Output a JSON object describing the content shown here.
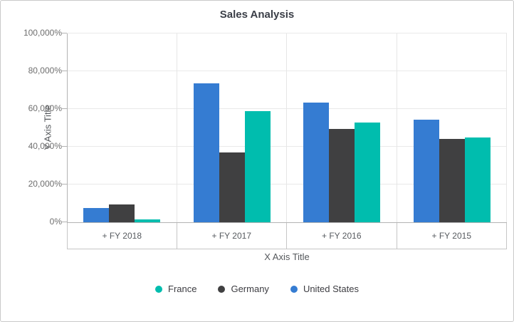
{
  "chart_data": {
    "type": "bar",
    "title": "Sales Analysis",
    "xlabel": "X Axis Title",
    "ylabel": "Y Axis Title",
    "categories": [
      "+ FY 2018",
      "+ FY 2017",
      "+ FY 2016",
      "+ FY 2015"
    ],
    "ylim": [
      0,
      100000
    ],
    "ytick_step": 20000,
    "ytick_labels": [
      "0%",
      "20,000%",
      "40,000%",
      "60,000%",
      "80,000%",
      "100,000%"
    ],
    "grid": "horizontal-gridlines-and-category-boundaries",
    "legend_position": "bottom",
    "series": [
      {
        "name": "United States",
        "color": "#357CD2",
        "values": [
          7700,
          73500,
          63500,
          54500
        ]
      },
      {
        "name": "Germany",
        "color": "#404041",
        "values": [
          9500,
          37000,
          49500,
          44000
        ]
      },
      {
        "name": "France",
        "color": "#00BDAE",
        "values": [
          1500,
          59000,
          53000,
          45000
        ]
      }
    ],
    "legend": [
      {
        "label": "France",
        "color": "#00BDAE"
      },
      {
        "label": "Germany",
        "color": "#404041"
      },
      {
        "label": "United States",
        "color": "#357CD2"
      }
    ]
  }
}
